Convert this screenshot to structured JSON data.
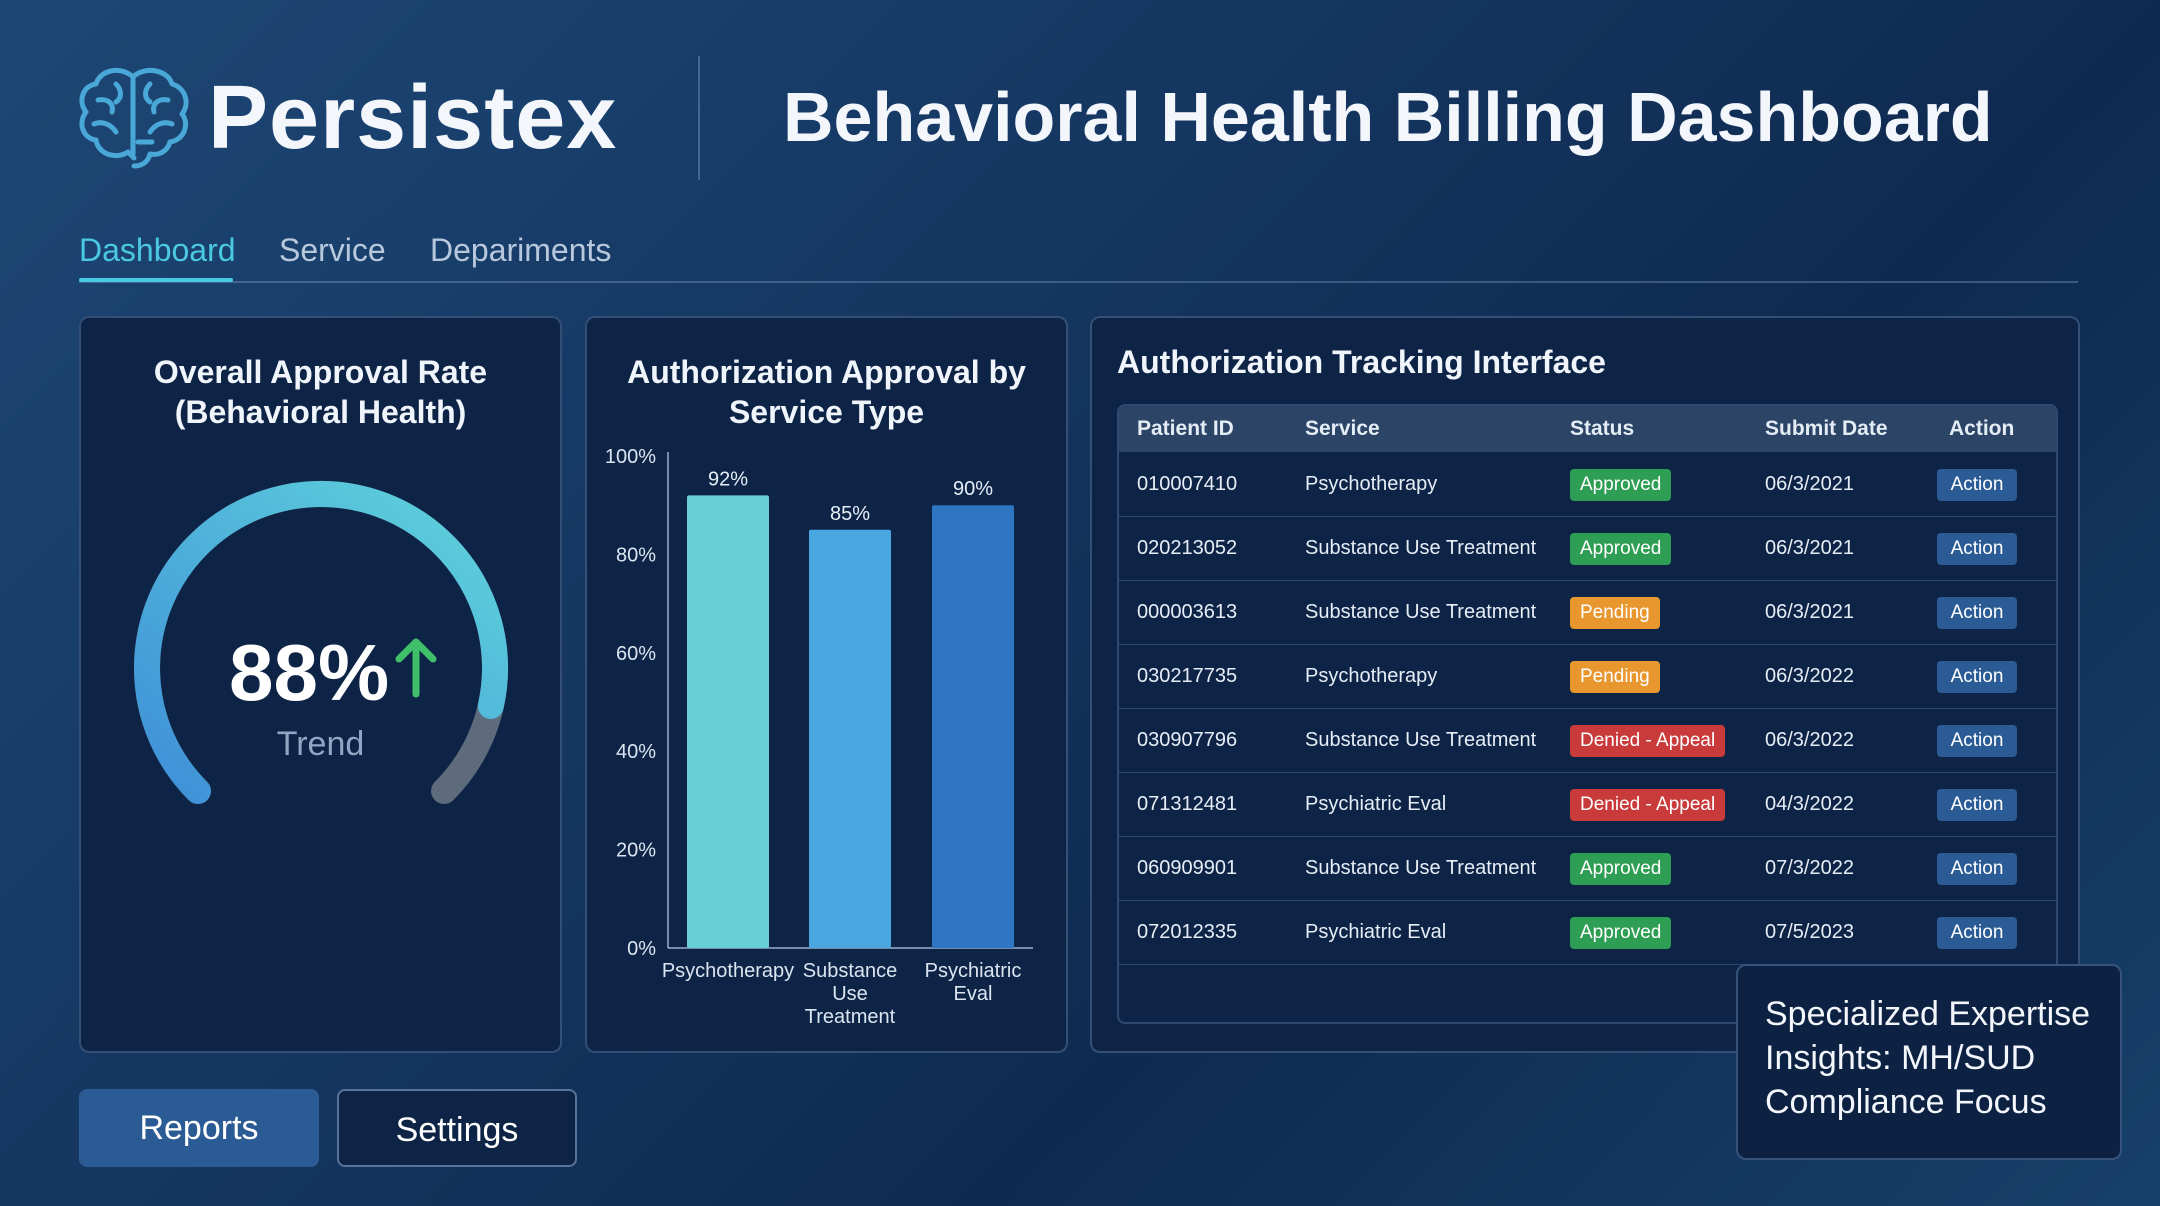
{
  "brand": {
    "name": "Persistex",
    "logo_icon": "brain-icon"
  },
  "header": {
    "title": "Behavioral Health Billing Dashboard"
  },
  "tabs": [
    {
      "label": "Dashboard",
      "active": true
    },
    {
      "label": "Service",
      "active": false
    },
    {
      "label": "Depariments",
      "active": false
    }
  ],
  "gauge": {
    "title_line1": "Overall Approval Rate",
    "title_line2": "(Behavioral Health)",
    "value": "88%",
    "fraction": 0.88,
    "label": "Trend",
    "trend_icon": "arrow-up-icon",
    "colors": {
      "fill_start": "#3f8fd8",
      "fill_end": "#5fd4dc",
      "track": "#5d6b7d",
      "arrow": "#3fbf6a"
    }
  },
  "chart_data": {
    "type": "bar",
    "title_line1": "Authorization Approval by",
    "title_line2": "Service Type",
    "categories": [
      [
        "Psychotherapy"
      ],
      [
        "Substance",
        "Use",
        "Treatment"
      ],
      [
        "Psychiatric",
        "Eval"
      ]
    ],
    "values": [
      92,
      85,
      90
    ],
    "data_labels": [
      "92%",
      "85%",
      "90%"
    ],
    "yticks": [
      "0%",
      "20%",
      "40%",
      "60%",
      "80%",
      "100%"
    ],
    "ylim": [
      0,
      100
    ],
    "colors": [
      "#67cfd6",
      "#4aa6e0",
      "#2f76c2"
    ]
  },
  "table": {
    "title": "Authorization Tracking Interface",
    "columns": [
      "Patient ID",
      "Service",
      "Status",
      "Submit Date",
      "Action"
    ],
    "rows": [
      {
        "id": "010007410",
        "service": "Psychotherapy",
        "status": "Approved",
        "status_type": "approved",
        "date": "06/3/2021",
        "action": "Action"
      },
      {
        "id": "020213052",
        "service": "Substance Use Treatment",
        "status": "Approved",
        "status_type": "approved",
        "date": "06/3/2021",
        "action": "Action"
      },
      {
        "id": "000003613",
        "service": "Substance Use Treatment",
        "status": "Pending",
        "status_type": "pending",
        "date": "06/3/2021",
        "action": "Action"
      },
      {
        "id": "030217735",
        "service": "Psychotherapy",
        "status": "Pending",
        "status_type": "pending",
        "date": "06/3/2022",
        "action": "Action"
      },
      {
        "id": "030907796",
        "service": "Substance Use Treatment",
        "status": "Denied - Appeal",
        "status_type": "denied",
        "date": "06/3/2022",
        "action": "Action"
      },
      {
        "id": "071312481",
        "service": "Psychiatric Eval",
        "status": "Denied - Appeal",
        "status_type": "denied",
        "date": "04/3/2022",
        "action": "Action"
      },
      {
        "id": "060909901",
        "service": "Substance Use Treatment",
        "status": "Approved",
        "status_type": "approved",
        "date": "07/3/2022",
        "action": "Action"
      },
      {
        "id": "072012335",
        "service": "Psychiatric Eval",
        "status": "Approved",
        "status_type": "approved",
        "date": "07/5/2023",
        "action": "Action"
      }
    ],
    "status_colors": {
      "approved": "#2f9e55",
      "pending": "#e8962e",
      "denied": "#c93a3a"
    }
  },
  "buttons": {
    "reports": "Reports",
    "settings": "Settings"
  },
  "insight": {
    "line1": "Specialized Expertise",
    "line2": "Insights: MH/SUD",
    "line3": "Compliance Focus"
  }
}
